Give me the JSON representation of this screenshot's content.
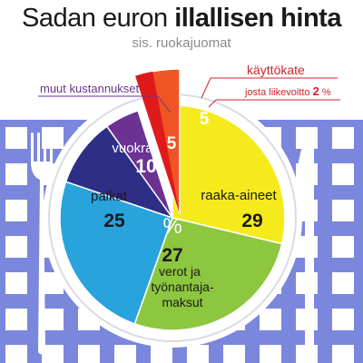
{
  "header": {
    "title_light": "Sadan euron",
    "title_bold": "illallisen hinta",
    "subtitle": "sis. ruokajuomat"
  },
  "center_symbol": "%",
  "colors": {
    "cloth_blue": "#7b86dd",
    "raaka": "#f5ea1c",
    "verot": "#8dc63f",
    "palkat": "#29a3dc",
    "vuokrat": "#2e2e86",
    "muut": "#6b3294",
    "kate_light": "#ef5523",
    "kate_dark": "#e01a1a",
    "muut_label": "#6b3294",
    "kate_label": "#d0232a"
  },
  "chart_data": {
    "type": "pie",
    "title": "Sadan euron illallisen hinta",
    "subtitle": "sis. ruokajuomat",
    "unit": "%",
    "slices": [
      {
        "label": "raaka-aineet",
        "value": 29
      },
      {
        "label": "verot ja työnantajamaksut",
        "value": 27
      },
      {
        "label": "palkat",
        "value": 25
      },
      {
        "label": "vuokrat",
        "value": 10
      },
      {
        "label": "muut kustannukset",
        "value": 5
      },
      {
        "label": "käyttökate",
        "value": 5,
        "sub_label": "josta liikevoitto",
        "sub_value": 2
      }
    ],
    "labels": {
      "raaka_name": "raaka-aineet",
      "raaka_value": "29",
      "verot_value": "27",
      "verot_line1": "verot ja",
      "verot_line2": "työnantaja-",
      "verot_line3": "maksut",
      "palkat_name": "palkat",
      "palkat_value": "25",
      "vuokrat_name": "vuokrat",
      "vuokrat_value": "10",
      "muut_value": "5",
      "muut_name": "muut kustannukset",
      "kate_value": "5",
      "kate_name": "käyttökate",
      "kate_sub_text": "josta liikevoitto",
      "kate_sub_value": "2",
      "kate_sub_unit": "%"
    }
  }
}
